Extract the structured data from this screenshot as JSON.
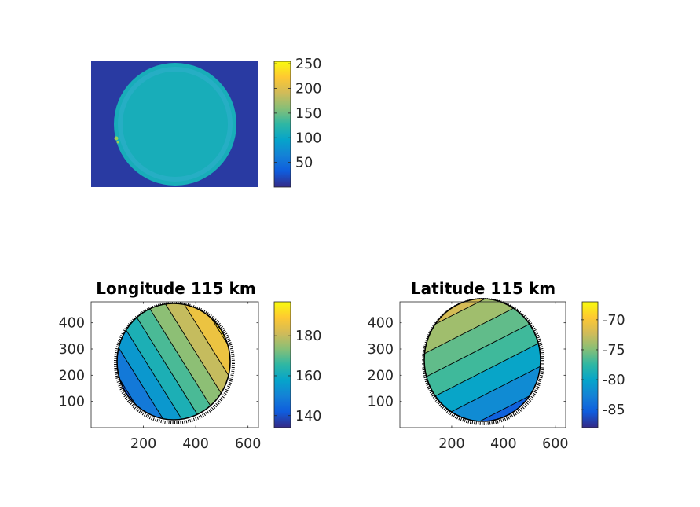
{
  "chart_data": [
    {
      "type": "heatmap",
      "title": "",
      "xlabel": "",
      "ylabel": "",
      "axes_visible": false,
      "background_value": 10,
      "disk_value": 110,
      "overlay_text": "",
      "colorbar": {
        "ticks": [
          50,
          100,
          150,
          200,
          250
        ],
        "clim": [
          0,
          255
        ]
      },
      "colormap": "parula"
    },
    {
      "type": "heatmap",
      "title": "Longitude 115 km",
      "xlabel": "",
      "ylabel": "",
      "xlim": [
        0,
        640
      ],
      "ylim": [
        0,
        480
      ],
      "xticks": [
        200,
        400,
        600
      ],
      "yticks": [
        100,
        200,
        300,
        400
      ],
      "colorbar": {
        "ticks": [
          140,
          160,
          180
        ],
        "clim": [
          134,
          197
        ]
      },
      "bands": [
        140,
        148,
        155,
        162,
        168,
        174,
        180,
        186,
        192
      ],
      "colormap": "parula"
    },
    {
      "type": "heatmap",
      "title": "Latitude 115 km",
      "xlabel": "",
      "ylabel": "",
      "xlim": [
        0,
        640
      ],
      "ylim": [
        0,
        480
      ],
      "xticks": [
        200,
        400,
        600
      ],
      "yticks": [
        100,
        200,
        300,
        400
      ],
      "colorbar": {
        "ticks": [
          -70,
          -75,
          -80,
          -85
        ],
        "clim": [
          -88,
          -67
        ]
      },
      "bands": [
        -85,
        -82,
        -80,
        -77,
        -76,
        -74,
        -72
      ],
      "colormap": "parula"
    }
  ],
  "colors": {
    "parula": [
      "#352a87",
      "#0f5cdd",
      "#1481d6",
      "#06a4ca",
      "#2eb7a4",
      "#87bf77",
      "#d1bb59",
      "#fec832",
      "#f9fb0e"
    ],
    "frame": "#262626",
    "contour": "#000000"
  }
}
